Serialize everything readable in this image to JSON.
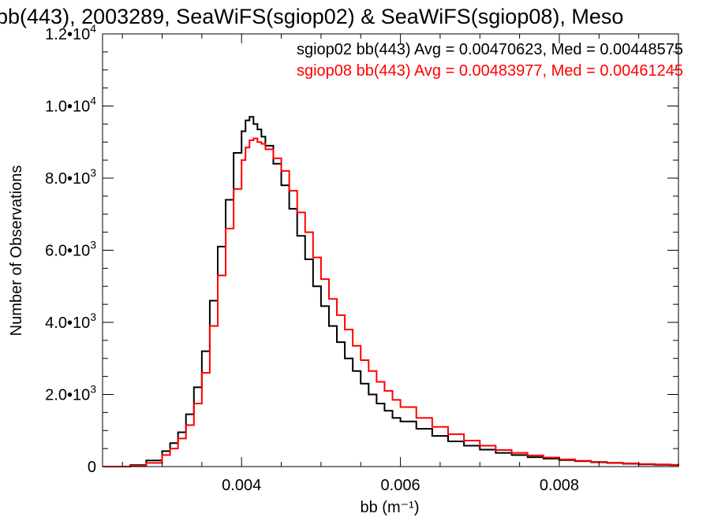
{
  "chart_data": {
    "type": "line",
    "title": "bb(443), 2003289, SeaWiFS(sgiop02) & SeaWiFS(sgiop08), Meso",
    "xlabel": "bb (m⁻¹)",
    "ylabel": "Number of Observations",
    "xlim": [
      0.00225,
      0.0095
    ],
    "ylim": [
      0,
      12000
    ],
    "x_ticks": [
      0.004,
      0.006,
      0.008
    ],
    "x_tick_labels": [
      "0.004",
      "0.006",
      "0.008"
    ],
    "y_ticks": [
      0,
      2000,
      4000,
      6000,
      8000,
      10000,
      12000
    ],
    "y_tick_labels": [
      {
        "mant": "0",
        "exp": ""
      },
      {
        "mant": "2.0•10",
        "exp": "3"
      },
      {
        "mant": "4.0•10",
        "exp": "3"
      },
      {
        "mant": "6.0•10",
        "exp": "3"
      },
      {
        "mant": "8.0•10",
        "exp": "3"
      },
      {
        "mant": "1.0•10",
        "exp": "4"
      },
      {
        "mant": "1.2•10",
        "exp": "4"
      }
    ],
    "grid": false,
    "legend_position": "top-right",
    "series": [
      {
        "name": "sgiop02 bb(443) Avg = 0.00470623, Med = 0.00448575",
        "color": "#000000",
        "x": [
          0.00225,
          0.0026,
          0.0028,
          0.003,
          0.0031,
          0.0032,
          0.0033,
          0.0034,
          0.0035,
          0.0036,
          0.0037,
          0.0038,
          0.0039,
          0.004,
          0.00405,
          0.0041,
          0.00415,
          0.0042,
          0.00425,
          0.0043,
          0.0044,
          0.0045,
          0.0046,
          0.0047,
          0.0048,
          0.0049,
          0.005,
          0.0051,
          0.0052,
          0.0053,
          0.0054,
          0.0055,
          0.0056,
          0.0057,
          0.0058,
          0.0059,
          0.006,
          0.0062,
          0.0064,
          0.0066,
          0.0068,
          0.007,
          0.0072,
          0.0074,
          0.0076,
          0.0078,
          0.008,
          0.0082,
          0.0084,
          0.0086,
          0.0088,
          0.009,
          0.0092,
          0.0094,
          0.0095
        ],
        "y": [
          0,
          40,
          170,
          430,
          650,
          950,
          1450,
          2200,
          3200,
          4600,
          6100,
          7400,
          8700,
          9300,
          9600,
          9700,
          9500,
          9350,
          9150,
          8900,
          8400,
          7800,
          7150,
          6400,
          5750,
          5000,
          4450,
          3900,
          3450,
          3000,
          2650,
          2300,
          2000,
          1750,
          1550,
          1350,
          1250,
          1050,
          850,
          700,
          580,
          470,
          380,
          320,
          260,
          220,
          180,
          150,
          120,
          100,
          80,
          60,
          50,
          40,
          30
        ]
      },
      {
        "name": "sgiop08 bb(443) Avg = 0.00483977, Med = 0.00461245",
        "color": "#ff0000",
        "x": [
          0.00225,
          0.0026,
          0.0028,
          0.003,
          0.0031,
          0.0032,
          0.0033,
          0.0034,
          0.0035,
          0.0036,
          0.0037,
          0.0038,
          0.0039,
          0.004,
          0.00405,
          0.0041,
          0.00415,
          0.0042,
          0.00425,
          0.0043,
          0.0044,
          0.0045,
          0.0046,
          0.0047,
          0.0048,
          0.0049,
          0.005,
          0.0051,
          0.0052,
          0.0053,
          0.0054,
          0.0055,
          0.0056,
          0.0057,
          0.0058,
          0.0059,
          0.006,
          0.0062,
          0.0064,
          0.0066,
          0.0068,
          0.007,
          0.0072,
          0.0074,
          0.0076,
          0.0078,
          0.008,
          0.0082,
          0.0084,
          0.0086,
          0.0088,
          0.009,
          0.0092,
          0.0094,
          0.0095
        ],
        "y": [
          0,
          20,
          100,
          320,
          500,
          780,
          1150,
          1750,
          2600,
          3900,
          5300,
          6600,
          7700,
          8500,
          8850,
          9050,
          9100,
          9000,
          8950,
          8800,
          8550,
          8200,
          7650,
          7050,
          6500,
          5800,
          5200,
          4650,
          4200,
          3800,
          3350,
          2950,
          2650,
          2350,
          2100,
          1850,
          1650,
          1350,
          1100,
          900,
          720,
          580,
          460,
          380,
          310,
          250,
          200,
          160,
          130,
          110,
          90,
          70,
          60,
          50,
          40
        ]
      }
    ]
  }
}
